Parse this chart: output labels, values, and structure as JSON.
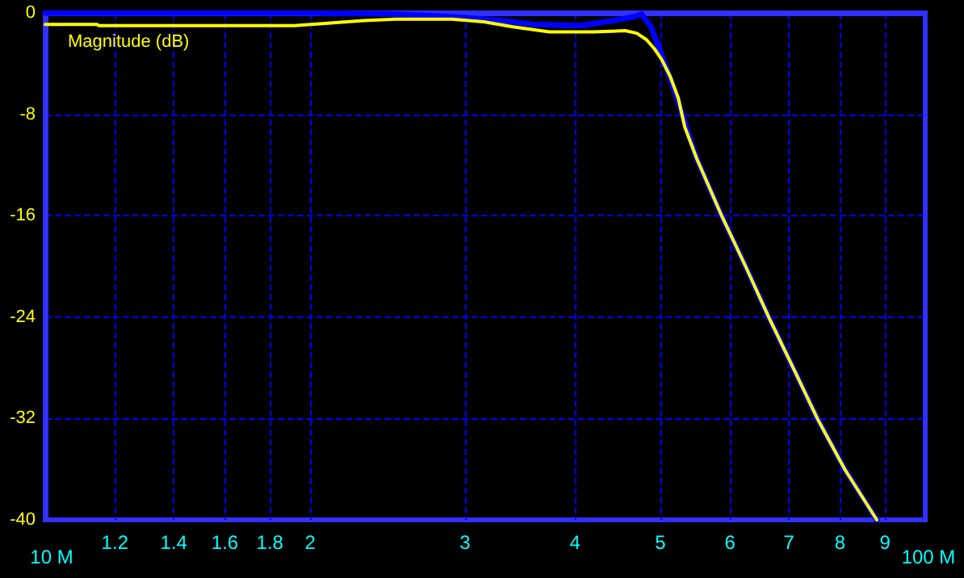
{
  "chart_data": {
    "type": "line",
    "x": [
      1,
      1.145,
      1.15,
      1.92,
      2.11,
      2.3,
      2.5,
      2.9,
      3.15,
      3.4,
      3.74,
      4.2,
      4.56,
      4.7,
      4.82,
      4.92,
      5.02,
      5.13,
      5.24,
      5.33,
      5.5,
      5.87,
      6.25,
      6.64,
      7.1,
      7.54,
      8.1,
      8.81
    ],
    "series": [
      {
        "color": "#0000ff",
        "x": [
          1,
          2,
          2.5,
          2.9,
          3.3,
          3.58,
          4.06,
          4.42,
          4.67,
          4.76,
          4.88,
          4.96,
          5.09,
          5.24,
          5.35,
          5.5,
          5.87,
          6.25,
          6.64,
          7.1,
          7.54,
          8.1,
          8.81
        ],
        "values": [
          0,
          0,
          -0.1,
          -0.3,
          -0.6,
          -0.9,
          -1.0,
          -0.6,
          -0.3,
          -0.1,
          -1.1,
          -2.4,
          -4.5,
          -7,
          -9,
          -11.5,
          -16,
          -20,
          -24,
          -28.2,
          -32,
          -36,
          -40
        ]
      },
      {
        "name": "Magnitude (dB)",
        "color": "#ffff00",
        "values": [
          -0.9,
          -0.9,
          -1.0,
          -1.0,
          -0.8,
          -0.6,
          -0.5,
          -0.5,
          -0.7,
          -1.1,
          -1.5,
          -1.5,
          -1.4,
          -1.6,
          -2.1,
          -2.8,
          -3.7,
          -5,
          -6.7,
          -9,
          -11.5,
          -16,
          -20,
          -24,
          -28.2,
          -32,
          -36,
          -40
        ]
      }
    ],
    "log": "x",
    "xlim": [
      1,
      10
    ],
    "xticks": [
      {
        "value": 1,
        "label": null
      },
      1.2,
      1.4,
      1.6,
      1.8,
      2,
      3,
      4,
      5,
      6,
      7,
      8,
      9,
      {
        "value": 10,
        "label": null
      }
    ],
    "annotations": [
      "10 M",
      "100 M"
    ],
    "ylim": [
      -40,
      0
    ],
    "yticks": [
      0,
      -8,
      -16,
      -24,
      -32,
      -40
    ],
    "grid": true,
    "legend": "top left",
    "marker": "none",
    "line_style": "solid"
  }
}
